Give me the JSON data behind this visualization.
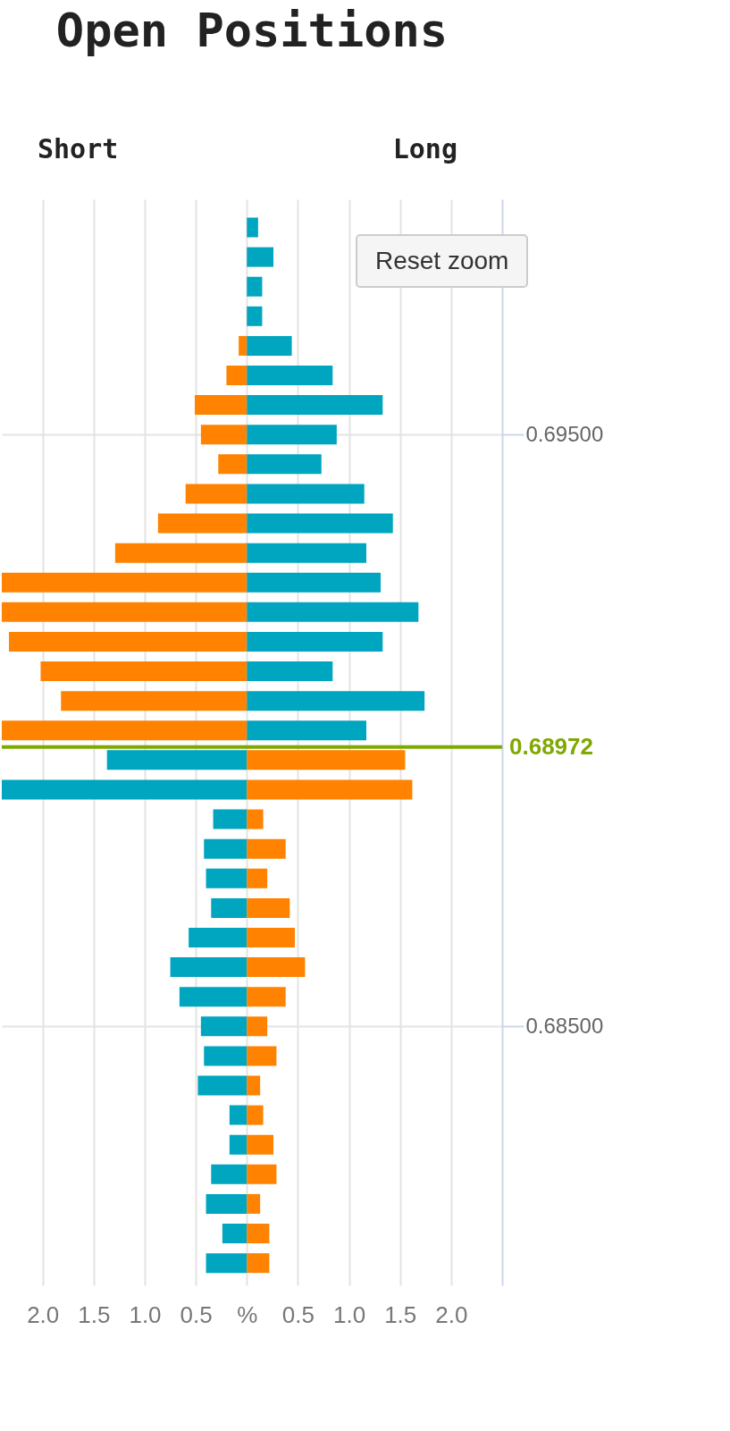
{
  "chart_data": {
    "type": "bar",
    "title": "Open Positions",
    "orientation": "horizontal",
    "stacked": true,
    "x": [
      0.6985,
      0.698,
      0.6975,
      0.697,
      0.6965,
      0.696,
      0.6955,
      0.695,
      0.6945,
      0.694,
      0.6935,
      0.693,
      0.6925,
      0.692,
      0.6915,
      0.691,
      0.6905,
      0.69,
      0.6895,
      0.689,
      0.6885,
      0.688,
      0.6875,
      0.687,
      0.6865,
      0.686,
      0.6855,
      0.685,
      0.6845,
      0.684,
      0.6835,
      0.683,
      0.6825,
      0.682,
      0.6815,
      0.681
    ],
    "series": [
      {
        "values": [
          null,
          null,
          null,
          null,
          -0.08,
          -0.2,
          -0.51,
          -0.45,
          -0.28,
          -0.6,
          -0.87,
          -1.29,
          -2.4,
          -2.4,
          -2.33,
          -2.02,
          -1.82,
          -2.4,
          -1.37,
          -2.4,
          -0.33,
          -0.42,
          -0.4,
          -0.35,
          -0.57,
          -0.75,
          -0.66,
          -0.45,
          -0.42,
          -0.48,
          -0.17,
          -0.17,
          -0.35,
          -0.4,
          -0.24,
          -0.4
        ],
        "colors": [
          null,
          null,
          null,
          null,
          "#ff8300",
          "#ff8300",
          "#ff8300",
          "#ff8300",
          "#ff8300",
          "#ff8300",
          "#ff8300",
          "#ff8300",
          "#ff8300",
          "#ff8300",
          "#ff8300",
          "#ff8300",
          "#ff8300",
          "#ff8300",
          "#00a5bf",
          "#00a5bf",
          "#00a5bf",
          "#00a5bf",
          "#00a5bf",
          "#00a5bf",
          "#00a5bf",
          "#00a5bf",
          "#00a5bf",
          "#00a5bf",
          "#00a5bf",
          "#00a5bf",
          "#00a5bf",
          "#00a5bf",
          "#00a5bf",
          "#00a5bf",
          "#00a5bf",
          "#00a5bf"
        ]
      },
      {
        "values": [
          0.11,
          0.26,
          0.15,
          0.15,
          0.44,
          0.84,
          1.33,
          0.88,
          0.73,
          1.15,
          1.43,
          1.17,
          1.31,
          1.68,
          1.33,
          0.84,
          1.74,
          1.17,
          1.55,
          1.62,
          0.16,
          0.38,
          0.2,
          0.42,
          0.47,
          0.57,
          0.38,
          0.2,
          0.29,
          0.13,
          0.16,
          0.26,
          0.29,
          0.13,
          0.22,
          0.22
        ],
        "colors": [
          "#00a5bf",
          "#00a5bf",
          "#00a5bf",
          "#00a5bf",
          "#00a5bf",
          "#00a5bf",
          "#00a5bf",
          "#00a5bf",
          "#00a5bf",
          "#00a5bf",
          "#00a5bf",
          "#00a5bf",
          "#00a5bf",
          "#00a5bf",
          "#00a5bf",
          "#00a5bf",
          "#00a5bf",
          "#00a5bf",
          "#ff8300",
          "#ff8300",
          "#ff8300",
          "#ff8300",
          "#ff8300",
          "#ff8300",
          "#ff8300",
          "#ff8300",
          "#ff8300",
          "#ff8300",
          "#ff8300",
          "#ff8300",
          "#ff8300",
          "#ff8300",
          "#ff8300",
          "#ff8300",
          "#ff8300",
          "#ff8300"
        ]
      }
    ],
    "xlim": [
      -2.4,
      2.5
    ],
    "xticks": [
      {
        "value": -2,
        "label": "2.0"
      },
      {
        "value": -1.5,
        "label": "1.5"
      },
      {
        "value": -1,
        "label": "1.0"
      },
      {
        "value": -0.5,
        "label": "0.5"
      },
      {
        "value": 0,
        "label": "%"
      },
      0.5,
      {
        "value": 1,
        "label": "1.0"
      },
      1.5,
      {
        "value": 2,
        "label": "2.0"
      }
    ],
    "ylim": [
      0.6807,
      0.6989
    ],
    "yticks": [
      {
        "value": 0.695,
        "label": "0.69500"
      },
      {
        "value": 0.685,
        "label": "0.68500"
      }
    ],
    "ref_lines": [
      {
        "axis": "y",
        "value": 0.68972,
        "label": "0.68972",
        "color": "#7fa800"
      }
    ],
    "grid": true,
    "annotations": [
      "Short",
      "Long",
      "Reset zoom"
    ]
  }
}
